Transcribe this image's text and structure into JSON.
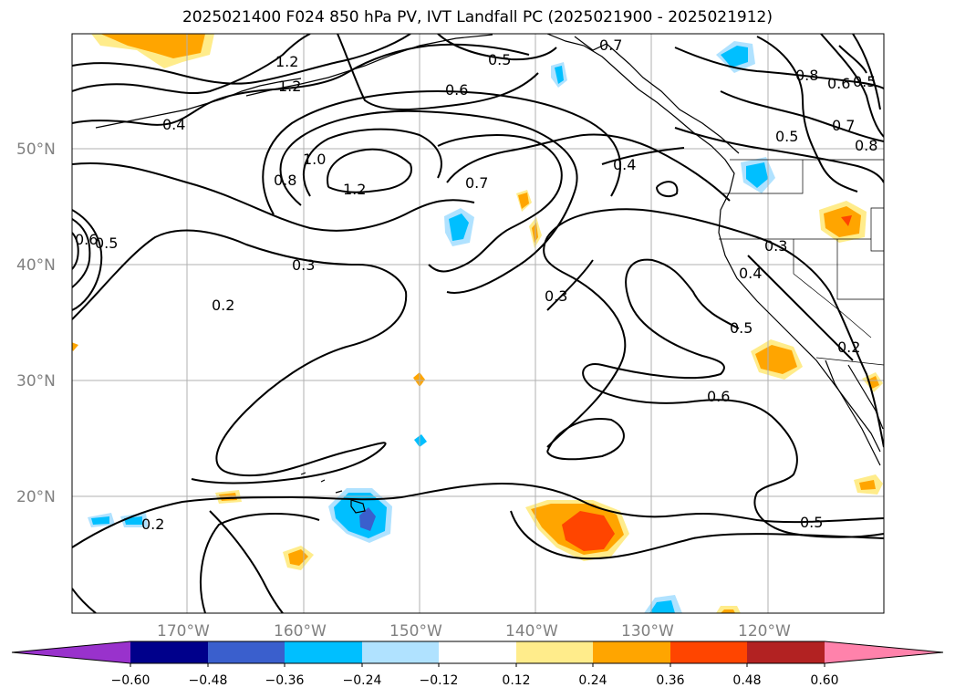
{
  "title": "2025021400 F024 850 hPa PV, IVT Landfall PC (2025021900 - 2025021912)",
  "lat_labels": [
    "50°N",
    "40°N",
    "30°N",
    "20°N"
  ],
  "lon_labels": [
    "170°W",
    "160°W",
    "150°W",
    "140°W",
    "130°W",
    "120°W"
  ],
  "contour_labels": [
    "1.2",
    "1.2",
    "0.4",
    "0.6",
    "0.5",
    "0.7",
    "0.8",
    "0.6",
    "0.5",
    "0.8",
    "0.7",
    "1.0",
    "1.2",
    "0.8",
    "0.7",
    "0.5",
    "0.4",
    "0.6",
    "0.5",
    "0.3",
    "0.2",
    "0.3",
    "0.3",
    "0.4",
    "0.5",
    "0.2",
    "0.6",
    "0.5",
    "0.2"
  ],
  "colorbar": {
    "ticks": [
      "−0.60",
      "−0.48",
      "−0.36",
      "−0.24",
      "−0.12",
      "0.12",
      "0.24",
      "0.36",
      "0.48",
      "0.60"
    ],
    "colors": [
      "#9932cc",
      "#00008b",
      "#3a5fcd",
      "#00bfff",
      "#b0e2ff",
      "#ffffff",
      "#ffec8b",
      "#ffa500",
      "#ff4500",
      "#b22222",
      "#ff82ab"
    ]
  },
  "colors": {
    "pos_1": "#ffec8b",
    "pos_2": "#ffa500",
    "pos_3": "#ff4500",
    "neg_1": "#b0e2ff",
    "neg_2": "#00bfff",
    "neg_3": "#3a5fcd",
    "grid": "#b0b0b0",
    "contour": "#000000"
  }
}
